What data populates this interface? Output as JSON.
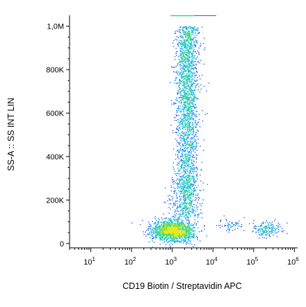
{
  "chart_data": {
    "type": "scatter",
    "subtype": "flow-cytometry density dot plot",
    "xlabel": "CD19 Biotin / Streptavidin APC",
    "ylabel": "SS-A :: SS INT LIN",
    "x_scale": "log",
    "xlim": [
      3,
      1200000
    ],
    "ylim": [
      -20000,
      1050000
    ],
    "x_ticks": [
      {
        "value": 10,
        "base": "10",
        "exp": "1"
      },
      {
        "value": 100,
        "base": "10",
        "exp": "2"
      },
      {
        "value": 1000,
        "base": "10",
        "exp": "3"
      },
      {
        "value": 10000,
        "base": "10",
        "exp": "4"
      },
      {
        "value": 100000,
        "base": "10",
        "exp": "5"
      },
      {
        "value": 1000000,
        "base": "10",
        "exp": "6"
      }
    ],
    "y_ticks": [
      {
        "value": 0,
        "label": "0"
      },
      {
        "value": 200000,
        "label": "200K"
      },
      {
        "value": 400000,
        "label": "400K"
      },
      {
        "value": 600000,
        "label": "600K"
      },
      {
        "value": 800000,
        "label": "800K"
      },
      {
        "value": 1000000,
        "label": "1,0M"
      }
    ],
    "populations": [
      {
        "name": "",
        "x_center": 1000,
        "y_center": 60000,
        "x_spread_decades": 0.25,
        "y_spread": 25000,
        "count": 1500
      },
      {
        "name": "",
        "x_center": 2300,
        "y_center": 620000,
        "x_spread_decades": 0.14,
        "y_range": [
          120000,
          1000000
        ],
        "count": 2300
      },
      {
        "name": "",
        "x_center": 1800,
        "y_center": 150000,
        "x_spread_decades": 0.2,
        "y_range": [
          80000,
          300000
        ],
        "count": 260
      },
      {
        "name": "",
        "x_center": 200000,
        "y_center": 70000,
        "x_spread_decades": 0.18,
        "y_spread": 18000,
        "count": 170
      },
      {
        "name": "",
        "x_center": 25000,
        "y_center": 85000,
        "x_spread_decades": 0.15,
        "y_spread": 15000,
        "count": 60
      }
    ],
    "grid": false,
    "legend": "none"
  }
}
